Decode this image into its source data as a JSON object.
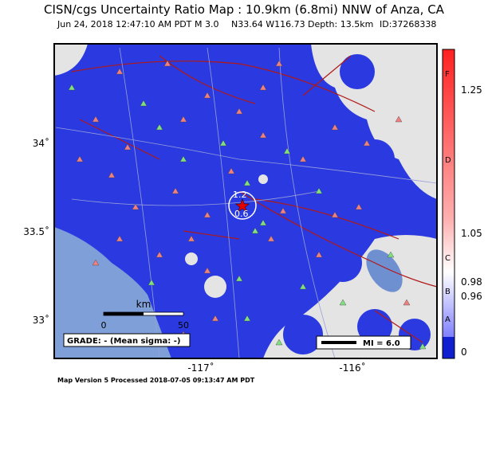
{
  "header": {
    "title": "CISN/cgs Uncertainty Ratio Map : 10.9km (6.8mi) NNW of Anza, CA",
    "date": "Jun 24, 2018 12:47:10 AM PDT",
    "magnitude": "M 3.0",
    "location": "N33.64 W116.73",
    "depth": "Depth: 13.5km",
    "id": "ID:37268338"
  },
  "map": {
    "lat_labels": [
      "34˚",
      "33.5˚",
      "33˚"
    ],
    "lon_labels": [
      "-117˚",
      "-116˚"
    ],
    "station_labels": [
      "1.2",
      "0.6"
    ],
    "scale": {
      "unit": "km",
      "start": "0",
      "end": "50"
    },
    "grade": "GRADE: - (Mean sigma: -)",
    "legend": "MI = 6.0"
  },
  "colorbar": {
    "letters": [
      "F",
      "D",
      "C",
      "B",
      "A"
    ],
    "values": [
      "1.25",
      "1.05",
      "0.98",
      "0.96",
      "0"
    ]
  },
  "footer": "Map Version 5 Processed 2018-07-05 09:13:47 AM PDT"
}
